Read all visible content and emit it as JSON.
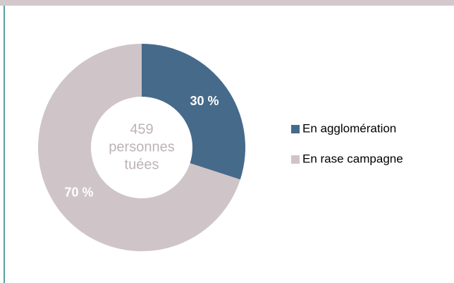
{
  "chart_data": {
    "type": "donut",
    "categories": [
      "En agglomération",
      "En rase campagne"
    ],
    "values": [
      30,
      70
    ],
    "value_labels": [
      "30 %",
      "70 %"
    ],
    "colors": [
      "#466a8a",
      "#cfc5c9"
    ],
    "center_label": [
      "459",
      "personnes",
      "tuées"
    ]
  }
}
